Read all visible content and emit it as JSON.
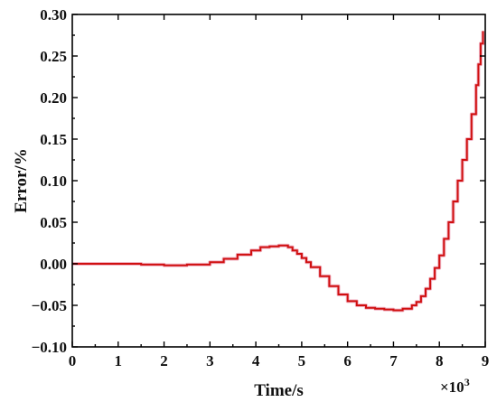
{
  "chart_data": {
    "type": "line",
    "xlabel": "Time/s",
    "ylabel": "Error/%",
    "x_multiplier_label": "×10",
    "x_multiplier_exponent": "3",
    "xlim": [
      0,
      9
    ],
    "ylim": [
      -0.1,
      0.3
    ],
    "x_ticks": [
      "0",
      "1",
      "2",
      "3",
      "4",
      "5",
      "6",
      "7",
      "8",
      "9"
    ],
    "y_ticks": [
      "-0.10",
      "-0.05",
      "0.00",
      "0.05",
      "0.10",
      "0.15",
      "0.20",
      "0.25",
      "0.30"
    ],
    "grid": false,
    "legend": "none",
    "series": [
      {
        "color": "#d01010",
        "shadow_color": "#f2b8c8",
        "x": [
          0,
          0.5,
          1.0,
          1.5,
          2.0,
          2.5,
          3.0,
          3.3,
          3.6,
          3.9,
          4.1,
          4.3,
          4.5,
          4.6,
          4.7,
          4.8,
          4.9,
          5.0,
          5.1,
          5.2,
          5.4,
          5.6,
          5.8,
          6.0,
          6.2,
          6.4,
          6.6,
          6.8,
          7.0,
          7.2,
          7.4,
          7.5,
          7.6,
          7.7,
          7.8,
          7.9,
          8.0,
          8.1,
          8.2,
          8.3,
          8.4,
          8.5,
          8.6,
          8.7,
          8.8,
          8.85,
          8.9,
          8.95
        ],
        "y": [
          0.0,
          0.0,
          0.0,
          -0.001,
          -0.002,
          -0.001,
          0.002,
          0.006,
          0.011,
          0.016,
          0.02,
          0.021,
          0.022,
          0.022,
          0.02,
          0.016,
          0.012,
          0.007,
          0.002,
          -0.004,
          -0.015,
          -0.027,
          -0.037,
          -0.045,
          -0.05,
          -0.053,
          -0.054,
          -0.055,
          -0.056,
          -0.054,
          -0.05,
          -0.046,
          -0.039,
          -0.03,
          -0.018,
          -0.005,
          0.01,
          0.03,
          0.05,
          0.075,
          0.1,
          0.125,
          0.15,
          0.18,
          0.215,
          0.24,
          0.265,
          0.28
        ]
      }
    ]
  }
}
